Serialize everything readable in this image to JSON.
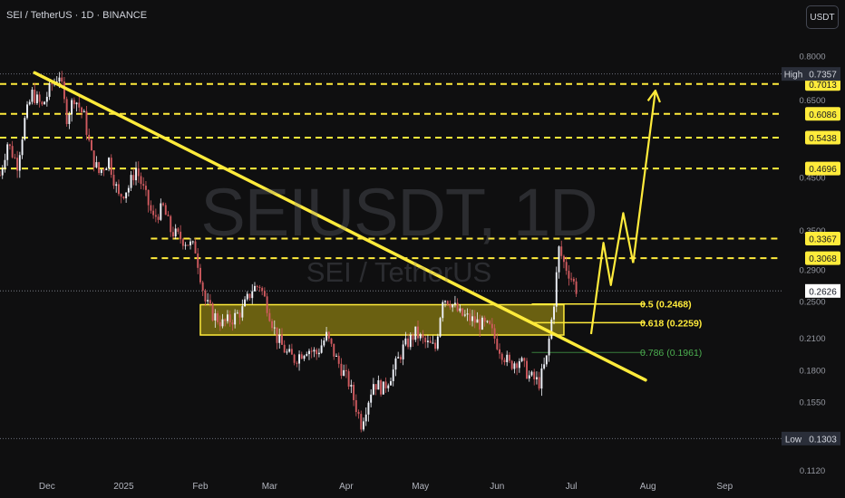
{
  "header": {
    "symbol_title": "SEI / TetherUS · 1D · BINANCE",
    "currency": "USDT"
  },
  "watermark": {
    "main": "SEIUSDT, 1D",
    "sub": "SEI / TetherUS"
  },
  "colors": {
    "background": "#0f0f10",
    "up": "#f0f3fa",
    "down": "#cf5a5f",
    "yellow": "#ffeb3b",
    "zone_fill": "#8a7c12",
    "green": "#4caf50"
  },
  "chart_data": {
    "type": "candlestick",
    "x_axis": {
      "ticks": [
        {
          "label": "Dec",
          "date": "2024-12-01"
        },
        {
          "label": "2025",
          "date": "2025-01-01"
        },
        {
          "label": "Feb",
          "date": "2025-02-01"
        },
        {
          "label": "Mar",
          "date": "2025-03-01"
        },
        {
          "label": "Apr",
          "date": "2025-04-01"
        },
        {
          "label": "May",
          "date": "2025-05-01"
        },
        {
          "label": "Jun",
          "date": "2025-06-01"
        },
        {
          "label": "Jul",
          "date": "2025-07-01"
        },
        {
          "label": "Aug",
          "date": "2025-08-01"
        },
        {
          "label": "Sep",
          "date": "2025-09-01"
        }
      ],
      "range": [
        "2024-11-12",
        "2025-09-24"
      ]
    },
    "y_axis": {
      "scale": "log",
      "range": [
        0.108,
        0.88
      ],
      "tick_labels": [
        {
          "label": "0.8000",
          "value": 0.8
        },
        {
          "label": "0.6500",
          "value": 0.65
        },
        {
          "label": "0.4500",
          "value": 0.45
        },
        {
          "label": "0.3500",
          "value": 0.35
        },
        {
          "label": "0.2900",
          "value": 0.29
        },
        {
          "label": "0.2500",
          "value": 0.25
        },
        {
          "label": "0.2100",
          "value": 0.21
        },
        {
          "label": "0.1800",
          "value": 0.18
        },
        {
          "label": "0.1550",
          "value": 0.155
        },
        {
          "label": "0.1120",
          "value": 0.112
        }
      ]
    },
    "price_levels": [
      {
        "label": "0.7013",
        "value": 0.7013
      },
      {
        "label": "0.6086",
        "value": 0.6086
      },
      {
        "label": "0.5438",
        "value": 0.5438
      },
      {
        "label": "0.4696",
        "value": 0.4696
      },
      {
        "label": "0.3367",
        "value": 0.3367
      },
      {
        "label": "0.3068",
        "value": 0.3068
      }
    ],
    "high": {
      "tag": "High",
      "label": "0.7357",
      "value": 0.7357
    },
    "low": {
      "tag": "Low",
      "label": "0.1303",
      "value": 0.1303
    },
    "current_price": {
      "label": "0.2626",
      "value": 0.2626
    },
    "fib_levels": [
      {
        "label": "0.5 (0.2468)",
        "value": 0.2468,
        "style": "yellow"
      },
      {
        "label": "0.618 (0.2259)",
        "value": 0.2259,
        "style": "yellow"
      },
      {
        "label": "0.786 (0.1961)",
        "value": 0.1961,
        "style": "green"
      }
    ],
    "support_zone": {
      "from": "2025-02-01",
      "to": "2025-06-28",
      "low": 0.213,
      "high": 0.246
    },
    "trendline": {
      "from": {
        "date": "2024-11-26",
        "value": 0.74
      },
      "to": {
        "date": "2025-07-31",
        "value": 0.172
      }
    },
    "projection_path": [
      {
        "date": "2025-07-09",
        "value": 0.214
      },
      {
        "date": "2025-07-14",
        "value": 0.33
      },
      {
        "date": "2025-07-17",
        "value": 0.27
      },
      {
        "date": "2025-07-22",
        "value": 0.38
      },
      {
        "date": "2025-07-26",
        "value": 0.3
      }
    ],
    "projection_arrow": {
      "from": {
        "date": "2025-07-26",
        "value": 0.3
      },
      "to": {
        "date": "2025-08-04",
        "value": 0.68
      }
    },
    "price_path": [
      [
        "2024-11-12",
        0.455
      ],
      [
        "2024-11-15",
        0.53
      ],
      [
        "2024-11-19",
        0.48
      ],
      [
        "2024-11-22",
        0.59
      ],
      [
        "2024-11-25",
        0.67
      ],
      [
        "2024-11-29",
        0.63
      ],
      [
        "2024-12-03",
        0.7
      ],
      [
        "2024-12-06",
        0.735
      ],
      [
        "2024-12-09",
        0.6
      ],
      [
        "2024-12-12",
        0.66
      ],
      [
        "2024-12-16",
        0.6
      ],
      [
        "2024-12-19",
        0.5
      ],
      [
        "2024-12-22",
        0.46
      ],
      [
        "2024-12-26",
        0.49
      ],
      [
        "2024-12-30",
        0.41
      ],
      [
        "2025-01-03",
        0.43
      ],
      [
        "2025-01-06",
        0.47
      ],
      [
        "2025-01-10",
        0.41
      ],
      [
        "2025-01-13",
        0.37
      ],
      [
        "2025-01-17",
        0.39
      ],
      [
        "2025-01-20",
        0.35
      ],
      [
        "2025-01-23",
        0.34
      ],
      [
        "2025-01-27",
        0.33
      ],
      [
        "2025-01-30",
        0.32
      ],
      [
        "2025-02-03",
        0.25
      ],
      [
        "2025-02-06",
        0.235
      ],
      [
        "2025-02-10",
        0.225
      ],
      [
        "2025-02-14",
        0.23
      ],
      [
        "2025-02-18",
        0.24
      ],
      [
        "2025-02-22",
        0.265
      ],
      [
        "2025-02-25",
        0.27
      ],
      [
        "2025-02-28",
        0.245
      ],
      [
        "2025-03-04",
        0.21
      ],
      [
        "2025-03-08",
        0.195
      ],
      [
        "2025-03-11",
        0.19
      ],
      [
        "2025-03-16",
        0.2
      ],
      [
        "2025-03-20",
        0.195
      ],
      [
        "2025-03-24",
        0.212
      ],
      [
        "2025-03-28",
        0.19
      ],
      [
        "2025-04-02",
        0.17
      ],
      [
        "2025-04-07",
        0.14
      ],
      [
        "2025-04-12",
        0.17
      ],
      [
        "2025-04-16",
        0.165
      ],
      [
        "2025-04-20",
        0.18
      ],
      [
        "2025-04-24",
        0.2
      ],
      [
        "2025-04-29",
        0.215
      ],
      [
        "2025-05-03",
        0.205
      ],
      [
        "2025-05-07",
        0.2
      ],
      [
        "2025-05-10",
        0.255
      ],
      [
        "2025-05-13",
        0.25
      ],
      [
        "2025-05-17",
        0.235
      ],
      [
        "2025-05-21",
        0.23
      ],
      [
        "2025-05-25",
        0.225
      ],
      [
        "2025-05-29",
        0.22
      ],
      [
        "2025-06-02",
        0.2
      ],
      [
        "2025-06-06",
        0.185
      ],
      [
        "2025-06-10",
        0.19
      ],
      [
        "2025-06-14",
        0.175
      ],
      [
        "2025-06-18",
        0.17
      ],
      [
        "2025-06-21",
        0.19
      ],
      [
        "2025-06-24",
        0.25
      ],
      [
        "2025-06-26",
        0.32
      ],
      [
        "2025-06-28",
        0.3
      ],
      [
        "2025-07-01",
        0.28
      ],
      [
        "2025-07-03",
        0.265
      ]
    ]
  }
}
